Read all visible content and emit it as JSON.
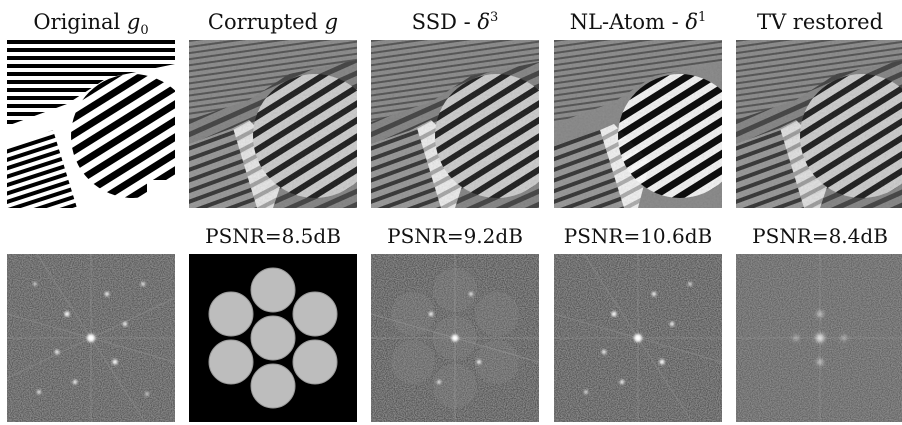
{
  "figure": {
    "columns": [
      {
        "id": "original",
        "title_text": "Original",
        "title_math": "g",
        "title_sub": "0",
        "title_sup": "",
        "psnr": ""
      },
      {
        "id": "corrupted",
        "title_text": "Corrupted",
        "title_math": "g",
        "title_sub": "",
        "title_sup": "",
        "psnr": "PSNR=8.5dB"
      },
      {
        "id": "ssd",
        "title_text": "SSD -",
        "title_math": "δ",
        "title_sub": "",
        "title_sup": "3",
        "psnr": "PSNR=9.2dB"
      },
      {
        "id": "nlatom",
        "title_text": "NL-Atom -",
        "title_math": "δ",
        "title_sub": "",
        "title_sup": "1",
        "psnr": "PSNR=10.6dB"
      },
      {
        "id": "tv",
        "title_text": "TV restored",
        "title_math": "",
        "title_sub": "",
        "title_sup": "",
        "psnr": "PSNR=8.4dB"
      }
    ]
  }
}
